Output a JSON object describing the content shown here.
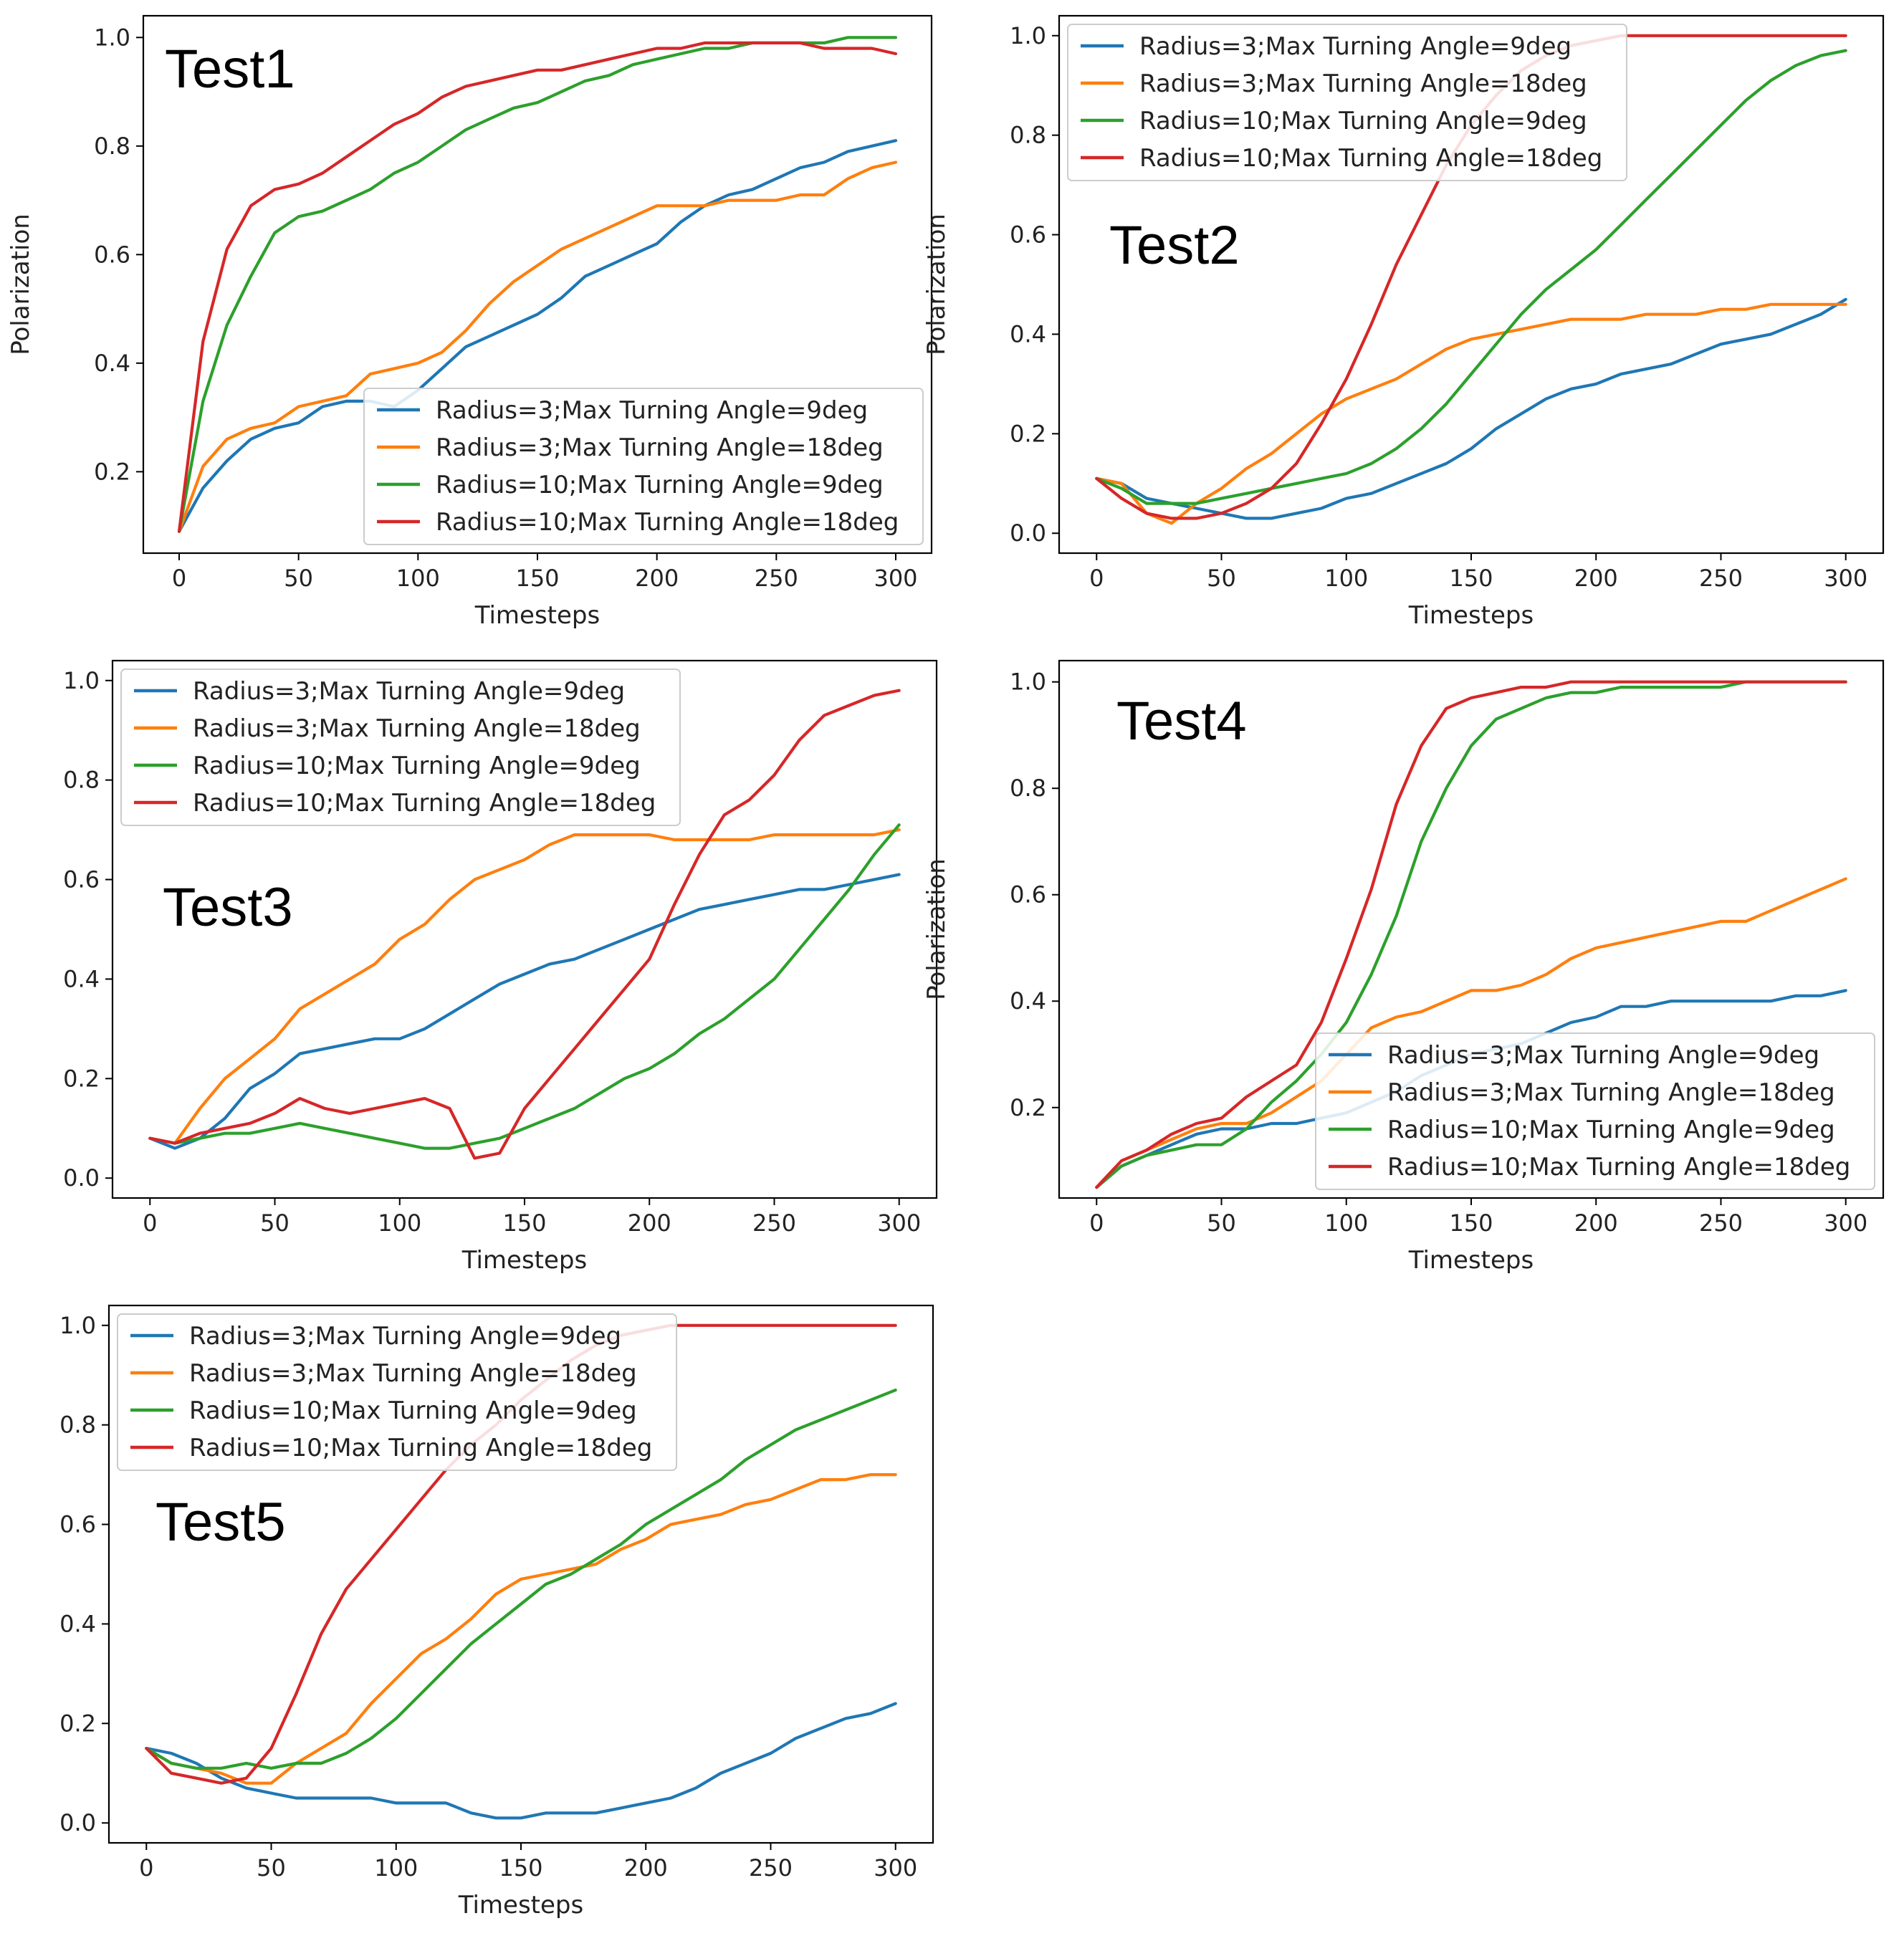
{
  "legend_labels": [
    "Radius=3;Max Turning Angle=9deg",
    "Radius=3;Max Turning Angle=18deg",
    "Radius=10;Max Turning Angle=9deg",
    "Radius=10;Max Turning Angle=18deg"
  ],
  "series_colors": [
    "#1f77b4",
    "#ff7f0e",
    "#2ca02c",
    "#d62728"
  ],
  "chart_data": [
    {
      "type": "line",
      "title": "Test1",
      "xlabel": "Timesteps",
      "ylabel": "Polarization",
      "xlim": [
        -15,
        315
      ],
      "ylim": [
        0.05,
        1.04
      ],
      "xticks": [
        0,
        50,
        100,
        150,
        200,
        250,
        300
      ],
      "yticks": [
        0.2,
        0.4,
        0.6,
        0.8,
        1.0
      ],
      "legend_position": "lower-right",
      "x": [
        0,
        10,
        20,
        30,
        40,
        50,
        60,
        70,
        80,
        90,
        100,
        110,
        120,
        130,
        140,
        150,
        160,
        170,
        180,
        190,
        200,
        210,
        220,
        230,
        240,
        250,
        260,
        270,
        280,
        290,
        300
      ],
      "series": [
        {
          "name": "Radius=3;Max Turning Angle=9deg",
          "values": [
            0.09,
            0.17,
            0.22,
            0.26,
            0.28,
            0.29,
            0.32,
            0.33,
            0.33,
            0.32,
            0.35,
            0.39,
            0.43,
            0.45,
            0.47,
            0.49,
            0.52,
            0.56,
            0.58,
            0.6,
            0.62,
            0.66,
            0.69,
            0.71,
            0.72,
            0.74,
            0.76,
            0.77,
            0.79,
            0.8,
            0.81
          ]
        },
        {
          "name": "Radius=3;Max Turning Angle=18deg",
          "values": [
            0.09,
            0.21,
            0.26,
            0.28,
            0.29,
            0.32,
            0.33,
            0.34,
            0.38,
            0.39,
            0.4,
            0.42,
            0.46,
            0.51,
            0.55,
            0.58,
            0.61,
            0.63,
            0.65,
            0.67,
            0.69,
            0.69,
            0.69,
            0.7,
            0.7,
            0.7,
            0.71,
            0.71,
            0.74,
            0.76,
            0.77
          ]
        },
        {
          "name": "Radius=10;Max Turning Angle=9deg",
          "values": [
            0.09,
            0.33,
            0.47,
            0.56,
            0.64,
            0.67,
            0.68,
            0.7,
            0.72,
            0.75,
            0.77,
            0.8,
            0.83,
            0.85,
            0.87,
            0.88,
            0.9,
            0.92,
            0.93,
            0.95,
            0.96,
            0.97,
            0.98,
            0.98,
            0.99,
            0.99,
            0.99,
            0.99,
            1.0,
            1.0,
            1.0
          ]
        },
        {
          "name": "Radius=10;Max Turning Angle=18deg",
          "values": [
            0.09,
            0.44,
            0.61,
            0.69,
            0.72,
            0.73,
            0.75,
            0.78,
            0.81,
            0.84,
            0.86,
            0.89,
            0.91,
            0.92,
            0.93,
            0.94,
            0.94,
            0.95,
            0.96,
            0.97,
            0.98,
            0.98,
            0.99,
            0.99,
            0.99,
            0.99,
            0.99,
            0.98,
            0.98,
            0.98,
            0.97
          ]
        }
      ]
    },
    {
      "type": "line",
      "title": "Test2",
      "xlabel": "Timesteps",
      "ylabel": "Polarization",
      "xlim": [
        -15,
        315
      ],
      "ylim": [
        -0.04,
        1.04
      ],
      "xticks": [
        0,
        50,
        100,
        150,
        200,
        250,
        300
      ],
      "yticks": [
        0.0,
        0.2,
        0.4,
        0.6,
        0.8,
        1.0
      ],
      "legend_position": "upper-left",
      "x": [
        0,
        10,
        20,
        30,
        40,
        50,
        60,
        70,
        80,
        90,
        100,
        110,
        120,
        130,
        140,
        150,
        160,
        170,
        180,
        190,
        200,
        210,
        220,
        230,
        240,
        250,
        260,
        270,
        280,
        290,
        300
      ],
      "series": [
        {
          "name": "Radius=3;Max Turning Angle=9deg",
          "values": [
            0.11,
            0.1,
            0.07,
            0.06,
            0.05,
            0.04,
            0.03,
            0.03,
            0.04,
            0.05,
            0.07,
            0.08,
            0.1,
            0.12,
            0.14,
            0.17,
            0.21,
            0.24,
            0.27,
            0.29,
            0.3,
            0.32,
            0.33,
            0.34,
            0.36,
            0.38,
            0.39,
            0.4,
            0.42,
            0.44,
            0.47
          ]
        },
        {
          "name": "Radius=3;Max Turning Angle=18deg",
          "values": [
            0.11,
            0.1,
            0.04,
            0.02,
            0.06,
            0.09,
            0.13,
            0.16,
            0.2,
            0.24,
            0.27,
            0.29,
            0.31,
            0.34,
            0.37,
            0.39,
            0.4,
            0.41,
            0.42,
            0.43,
            0.43,
            0.43,
            0.44,
            0.44,
            0.44,
            0.45,
            0.45,
            0.46,
            0.46,
            0.46,
            0.46
          ]
        },
        {
          "name": "Radius=10;Max Turning Angle=9deg",
          "values": [
            0.11,
            0.09,
            0.06,
            0.06,
            0.06,
            0.07,
            0.08,
            0.09,
            0.1,
            0.11,
            0.12,
            0.14,
            0.17,
            0.21,
            0.26,
            0.32,
            0.38,
            0.44,
            0.49,
            0.53,
            0.57,
            0.62,
            0.67,
            0.72,
            0.77,
            0.82,
            0.87,
            0.91,
            0.94,
            0.96,
            0.97
          ]
        },
        {
          "name": "Radius=10;Max Turning Angle=18deg",
          "values": [
            0.11,
            0.07,
            0.04,
            0.03,
            0.03,
            0.04,
            0.06,
            0.09,
            0.14,
            0.22,
            0.31,
            0.42,
            0.54,
            0.64,
            0.74,
            0.82,
            0.88,
            0.93,
            0.96,
            0.98,
            0.99,
            1.0,
            1.0,
            1.0,
            1.0,
            1.0,
            1.0,
            1.0,
            1.0,
            1.0,
            1.0
          ]
        }
      ]
    },
    {
      "type": "line",
      "title": "Test3",
      "xlabel": "Timesteps",
      "ylabel": "Polarization",
      "xlim": [
        -15,
        315
      ],
      "ylim": [
        -0.04,
        1.04
      ],
      "xticks": [
        0,
        50,
        100,
        150,
        200,
        250,
        300
      ],
      "yticks": [
        0.0,
        0.2,
        0.4,
        0.6,
        0.8,
        1.0
      ],
      "legend_position": "upper-left",
      "x": [
        0,
        10,
        20,
        30,
        40,
        50,
        60,
        70,
        80,
        90,
        100,
        110,
        120,
        130,
        140,
        150,
        160,
        170,
        180,
        190,
        200,
        210,
        220,
        230,
        240,
        250,
        260,
        270,
        280,
        290,
        300
      ],
      "series": [
        {
          "name": "Radius=3;Max Turning Angle=9deg",
          "values": [
            0.08,
            0.06,
            0.08,
            0.12,
            0.18,
            0.21,
            0.25,
            0.26,
            0.27,
            0.28,
            0.28,
            0.3,
            0.33,
            0.36,
            0.39,
            0.41,
            0.43,
            0.44,
            0.46,
            0.48,
            0.5,
            0.52,
            0.54,
            0.55,
            0.56,
            0.57,
            0.58,
            0.58,
            0.59,
            0.6,
            0.61
          ]
        },
        {
          "name": "Radius=3;Max Turning Angle=18deg",
          "values": [
            0.08,
            0.07,
            0.14,
            0.2,
            0.24,
            0.28,
            0.34,
            0.37,
            0.4,
            0.43,
            0.48,
            0.51,
            0.56,
            0.6,
            0.62,
            0.64,
            0.67,
            0.69,
            0.69,
            0.69,
            0.69,
            0.68,
            0.68,
            0.68,
            0.68,
            0.69,
            0.69,
            0.69,
            0.69,
            0.69,
            0.7
          ]
        },
        {
          "name": "Radius=10;Max Turning Angle=9deg",
          "values": [
            0.08,
            0.07,
            0.08,
            0.09,
            0.09,
            0.1,
            0.11,
            0.1,
            0.09,
            0.08,
            0.07,
            0.06,
            0.06,
            0.07,
            0.08,
            0.1,
            0.12,
            0.14,
            0.17,
            0.2,
            0.22,
            0.25,
            0.29,
            0.32,
            0.36,
            0.4,
            0.46,
            0.52,
            0.58,
            0.65,
            0.71
          ]
        },
        {
          "name": "Radius=10;Max Turning Angle=18deg",
          "values": [
            0.08,
            0.07,
            0.09,
            0.1,
            0.11,
            0.13,
            0.16,
            0.14,
            0.13,
            0.14,
            0.15,
            0.16,
            0.14,
            0.04,
            0.05,
            0.14,
            0.2,
            0.26,
            0.32,
            0.38,
            0.44,
            0.55,
            0.65,
            0.73,
            0.76,
            0.81,
            0.88,
            0.93,
            0.95,
            0.97,
            0.98
          ]
        }
      ]
    },
    {
      "type": "line",
      "title": "Test4",
      "xlabel": "Timesteps",
      "ylabel": "Polarization",
      "xlim": [
        -15,
        315
      ],
      "ylim": [
        0.03,
        1.04
      ],
      "xticks": [
        0,
        50,
        100,
        150,
        200,
        250,
        300
      ],
      "yticks": [
        0.2,
        0.4,
        0.6,
        0.8,
        1.0
      ],
      "legend_position": "lower-right",
      "x": [
        0,
        10,
        20,
        30,
        40,
        50,
        60,
        70,
        80,
        90,
        100,
        110,
        120,
        130,
        140,
        150,
        160,
        170,
        180,
        190,
        200,
        210,
        220,
        230,
        240,
        250,
        260,
        270,
        280,
        290,
        300
      ],
      "series": [
        {
          "name": "Radius=3;Max Turning Angle=9deg",
          "values": [
            0.05,
            0.09,
            0.11,
            0.13,
            0.15,
            0.16,
            0.16,
            0.17,
            0.17,
            0.18,
            0.19,
            0.21,
            0.23,
            0.26,
            0.28,
            0.3,
            0.31,
            0.32,
            0.34,
            0.36,
            0.37,
            0.39,
            0.39,
            0.4,
            0.4,
            0.4,
            0.4,
            0.4,
            0.41,
            0.41,
            0.42
          ]
        },
        {
          "name": "Radius=3;Max Turning Angle=18deg",
          "values": [
            0.05,
            0.1,
            0.12,
            0.14,
            0.16,
            0.17,
            0.17,
            0.19,
            0.22,
            0.25,
            0.3,
            0.35,
            0.37,
            0.38,
            0.4,
            0.42,
            0.42,
            0.43,
            0.45,
            0.48,
            0.5,
            0.51,
            0.52,
            0.53,
            0.54,
            0.55,
            0.55,
            0.57,
            0.59,
            0.61,
            0.63
          ]
        },
        {
          "name": "Radius=10;Max Turning Angle=9deg",
          "values": [
            0.05,
            0.09,
            0.11,
            0.12,
            0.13,
            0.13,
            0.16,
            0.21,
            0.25,
            0.3,
            0.36,
            0.45,
            0.56,
            0.7,
            0.8,
            0.88,
            0.93,
            0.95,
            0.97,
            0.98,
            0.98,
            0.99,
            0.99,
            0.99,
            0.99,
            0.99,
            1.0,
            1.0,
            1.0,
            1.0,
            1.0
          ]
        },
        {
          "name": "Radius=10;Max Turning Angle=18deg",
          "values": [
            0.05,
            0.1,
            0.12,
            0.15,
            0.17,
            0.18,
            0.22,
            0.25,
            0.28,
            0.36,
            0.48,
            0.61,
            0.77,
            0.88,
            0.95,
            0.97,
            0.98,
            0.99,
            0.99,
            1.0,
            1.0,
            1.0,
            1.0,
            1.0,
            1.0,
            1.0,
            1.0,
            1.0,
            1.0,
            1.0,
            1.0
          ]
        }
      ]
    },
    {
      "type": "line",
      "title": "Test5",
      "xlabel": "Timesteps",
      "ylabel": "Polarization",
      "xlim": [
        -15,
        315
      ],
      "ylim": [
        -0.04,
        1.04
      ],
      "xticks": [
        0,
        50,
        100,
        150,
        200,
        250,
        300
      ],
      "yticks": [
        0.0,
        0.2,
        0.4,
        0.6,
        0.8,
        1.0
      ],
      "legend_position": "upper-left",
      "x": [
        0,
        10,
        20,
        30,
        40,
        50,
        60,
        70,
        80,
        90,
        100,
        110,
        120,
        130,
        140,
        150,
        160,
        170,
        180,
        190,
        200,
        210,
        220,
        230,
        240,
        250,
        260,
        270,
        280,
        290,
        300
      ],
      "series": [
        {
          "name": "Radius=3;Max Turning Angle=9deg",
          "values": [
            0.15,
            0.14,
            0.12,
            0.09,
            0.07,
            0.06,
            0.05,
            0.05,
            0.05,
            0.05,
            0.04,
            0.04,
            0.04,
            0.02,
            0.01,
            0.01,
            0.02,
            0.02,
            0.02,
            0.03,
            0.04,
            0.05,
            0.07,
            0.1,
            0.12,
            0.14,
            0.17,
            0.19,
            0.21,
            0.22,
            0.24
          ]
        },
        {
          "name": "Radius=3;Max Turning Angle=18deg",
          "values": [
            0.15,
            0.12,
            0.11,
            0.1,
            0.08,
            0.08,
            0.12,
            0.15,
            0.18,
            0.24,
            0.29,
            0.34,
            0.37,
            0.41,
            0.46,
            0.49,
            0.5,
            0.51,
            0.52,
            0.55,
            0.57,
            0.6,
            0.61,
            0.62,
            0.64,
            0.65,
            0.67,
            0.69,
            0.69,
            0.7,
            0.7
          ]
        },
        {
          "name": "Radius=10;Max Turning Angle=9deg",
          "values": [
            0.15,
            0.12,
            0.11,
            0.11,
            0.12,
            0.11,
            0.12,
            0.12,
            0.14,
            0.17,
            0.21,
            0.26,
            0.31,
            0.36,
            0.4,
            0.44,
            0.48,
            0.5,
            0.53,
            0.56,
            0.6,
            0.63,
            0.66,
            0.69,
            0.73,
            0.76,
            0.79,
            0.81,
            0.83,
            0.85,
            0.87
          ]
        },
        {
          "name": "Radius=10;Max Turning Angle=18deg",
          "values": [
            0.15,
            0.1,
            0.09,
            0.08,
            0.09,
            0.15,
            0.26,
            0.38,
            0.47,
            0.53,
            0.59,
            0.65,
            0.71,
            0.76,
            0.8,
            0.85,
            0.89,
            0.93,
            0.96,
            0.98,
            0.99,
            1.0,
            1.0,
            1.0,
            1.0,
            1.0,
            1.0,
            1.0,
            1.0,
            1.0,
            1.0
          ]
        }
      ]
    }
  ]
}
